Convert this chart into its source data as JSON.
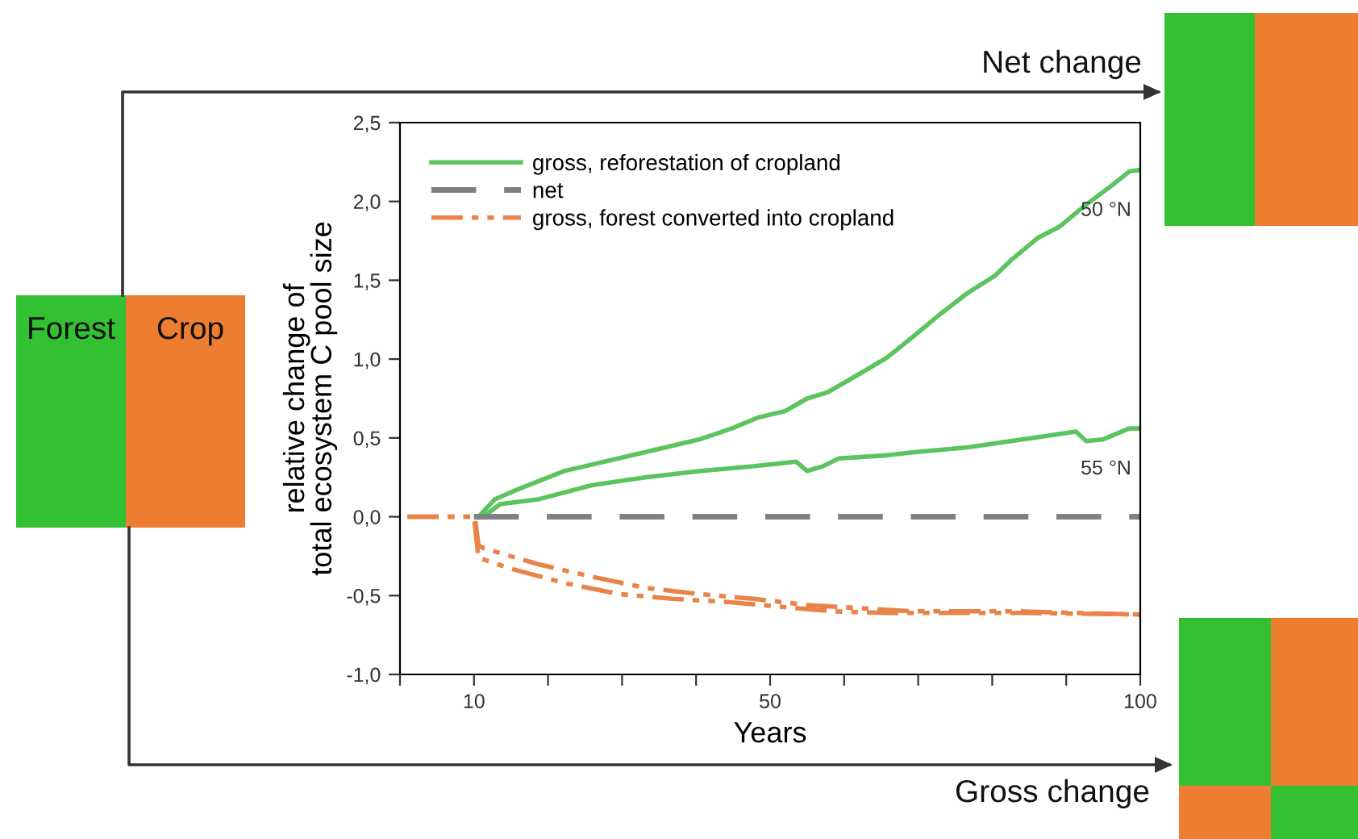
{
  "chart_data": {
    "type": "line",
    "xlabel": "Years",
    "ylabel": "relative change of\ntotal ecosystem C pool size",
    "xlim": [
      0,
      100
    ],
    "ylim": [
      -1.0,
      2.5
    ],
    "xticks": [
      {
        "value": 0,
        "label": null
      },
      {
        "value": 10,
        "label": "10"
      },
      {
        "value": 20,
        "label": null
      },
      {
        "value": 30,
        "label": null
      },
      {
        "value": 40,
        "label": null
      },
      {
        "value": 50,
        "label": "50"
      },
      {
        "value": 60,
        "label": null
      },
      {
        "value": 70,
        "label": null
      },
      {
        "value": 80,
        "label": null
      },
      {
        "value": 90,
        "label": null
      },
      {
        "value": 100,
        "label": "100"
      }
    ],
    "yticks": [
      {
        "value": -1.0,
        "label": "-1,0"
      },
      {
        "value": -0.5,
        "label": "-0,5"
      },
      {
        "value": 0.0,
        "label": "0,0"
      },
      {
        "value": 0.5,
        "label": "0,5"
      },
      {
        "value": 1.0,
        "label": "1,0"
      },
      {
        "value": 1.5,
        "label": "1,5"
      },
      {
        "value": 2.0,
        "label": "2,0"
      },
      {
        "value": 2.5,
        "label": "2,5"
      }
    ],
    "grid": false,
    "legend": "top left",
    "marker": "none",
    "series": [
      {
        "name": "gross, reforestation of cropland",
        "color": "#5cc45f",
        "line_style": "solid",
        "x": [
          10.6,
          12.8,
          15.7,
          22.2,
          33.1,
          40.4,
          44.8,
          48.4,
          52,
          55,
          57.8,
          62.2,
          65.8,
          69.5,
          73.1,
          76.7,
          80.4,
          82.6,
          86.2,
          89.1,
          92.7,
          96.4,
          98.5,
          100
        ],
        "values": [
          0,
          0.11,
          0.17,
          0.29,
          0.41,
          0.49,
          0.56,
          0.63,
          0.67,
          0.75,
          0.79,
          0.91,
          1.01,
          1.15,
          1.29,
          1.42,
          1.53,
          1.63,
          1.77,
          1.84,
          1.98,
          2.11,
          2.19,
          2.2
        ]
      },
      {
        "color": "#5cc45f",
        "line_style": "solid",
        "x": [
          11.3,
          13.5,
          18.6,
          25.9,
          33.1,
          40.4,
          47.7,
          53.5,
          55,
          57.1,
          59.3,
          65.8,
          69.5,
          76.7,
          84,
          91.3,
          92.7,
          94.9,
          98.5,
          100
        ],
        "values": [
          0,
          0.08,
          0.11,
          0.2,
          0.25,
          0.29,
          0.32,
          0.35,
          0.29,
          0.32,
          0.37,
          0.39,
          0.41,
          0.44,
          0.49,
          0.54,
          0.48,
          0.49,
          0.56,
          0.56
        ]
      },
      {
        "name": "net",
        "color": "#808080",
        "line_style": "dashed",
        "x": [
          10,
          100
        ],
        "values": [
          0,
          0
        ]
      },
      {
        "name": "gross, forest converted into cropland",
        "color": "#e8834a",
        "line_style": "dashdotdot",
        "x": [
          1,
          10.1,
          10.6,
          11.3,
          18.6,
          25.9,
          33.1,
          40.4,
          47.7,
          55,
          62.2,
          69.5,
          76.7,
          84,
          91.3,
          100
        ],
        "values": [
          0,
          0,
          -0.18,
          -0.2,
          -0.3,
          -0.38,
          -0.45,
          -0.49,
          -0.52,
          -0.56,
          -0.58,
          -0.6,
          -0.6,
          -0.6,
          -0.61,
          -0.62
        ]
      },
      {
        "color": "#e8834a",
        "line_style": "dashdotdot",
        "x": [
          1,
          10,
          10.6,
          15,
          22.2,
          29.5,
          36.8,
          44,
          51.3,
          58.6,
          65.8,
          73.1,
          84,
          100
        ],
        "values": [
          0,
          0,
          -0.26,
          -0.33,
          -0.42,
          -0.49,
          -0.52,
          -0.54,
          -0.57,
          -0.6,
          -0.61,
          -0.61,
          -0.61,
          -0.62
        ]
      }
    ],
    "annotations": [
      {
        "text": "50 °N",
        "x": 100,
        "y": 2.2
      },
      {
        "text": "55 °N",
        "x": 100,
        "y": 0.56
      },
      "Forest",
      "Crop",
      "Net change",
      "Gross change"
    ]
  }
}
